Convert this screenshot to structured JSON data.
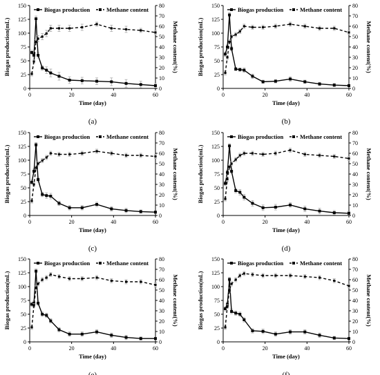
{
  "chart_data": [
    {
      "type": "line",
      "panel_label": "(a)",
      "xlabel": "Time (day)",
      "ylabel": "Biogas production(mL)",
      "y2label": "Methane content(%)",
      "xlim": [
        0,
        60
      ],
      "ylim": [
        0,
        150
      ],
      "y2lim": [
        0,
        80
      ],
      "xticks": [
        "0",
        "20",
        "40",
        "60"
      ],
      "yticks": [
        "0",
        "25",
        "50",
        "75",
        "100",
        "125",
        "150"
      ],
      "y2ticks": [
        "0",
        "10",
        "20",
        "30",
        "40",
        "50",
        "60",
        "70",
        "80"
      ],
      "legend_position": "top",
      "series": [
        {
          "name": "Biogas production",
          "axis": "left",
          "style": "solid",
          "x": [
            1,
            2,
            3,
            4,
            6,
            8,
            10,
            14,
            19,
            25,
            32,
            39,
            46,
            53,
            60
          ],
          "y": [
            65,
            60,
            126,
            60,
            37,
            33,
            28,
            22,
            15,
            14,
            13,
            12,
            9,
            7,
            5
          ],
          "error": [
            4,
            4,
            5,
            5,
            4,
            6,
            7,
            7,
            6,
            6,
            6,
            7,
            7,
            6,
            4
          ]
        },
        {
          "name": "Methane content",
          "axis": "right",
          "style": "dashed",
          "x": [
            1,
            2,
            3,
            4,
            6,
            8,
            10,
            14,
            19,
            25,
            32,
            39,
            46,
            53,
            60
          ],
          "y": [
            14,
            26,
            45,
            48,
            50,
            53,
            58,
            58,
            58,
            59,
            62,
            58,
            57,
            56,
            54
          ],
          "error": [
            2,
            2,
            2,
            3,
            3,
            3,
            3,
            3,
            3,
            3,
            2,
            3,
            3,
            2,
            2
          ]
        }
      ]
    },
    {
      "type": "line",
      "panel_label": "(b)",
      "xlabel": "Time (day)",
      "ylabel": "Biogas production(mL)",
      "y2label": "Methane content(%)",
      "xlim": [
        0,
        60
      ],
      "ylim": [
        0,
        150
      ],
      "y2lim": [
        0,
        80
      ],
      "xticks": [
        "0",
        "20",
        "40",
        "60"
      ],
      "yticks": [
        "0",
        "25",
        "50",
        "75",
        "100",
        "125",
        "150"
      ],
      "y2ticks": [
        "0",
        "10",
        "20",
        "30",
        "40",
        "50",
        "60",
        "70",
        "80"
      ],
      "legend_position": "top",
      "series": [
        {
          "name": "Biogas production",
          "axis": "left",
          "style": "solid",
          "x": [
            1,
            2,
            3,
            4,
            6,
            8,
            10,
            14,
            19,
            25,
            32,
            39,
            46,
            53,
            60
          ],
          "y": [
            62,
            75,
            133,
            72,
            35,
            34,
            33,
            22,
            12,
            13,
            17,
            12,
            8,
            6,
            5
          ],
          "error": [
            4,
            4,
            4,
            4,
            3,
            3,
            4,
            4,
            3,
            3,
            4,
            3,
            3,
            3,
            2
          ]
        },
        {
          "name": "Methane content",
          "axis": "right",
          "style": "dashed",
          "x": [
            1,
            2,
            3,
            4,
            6,
            8,
            10,
            14,
            19,
            25,
            32,
            39,
            46,
            53,
            60
          ],
          "y": [
            15,
            30,
            45,
            50,
            52,
            55,
            60,
            59,
            59,
            60,
            62,
            60,
            58,
            58,
            54
          ],
          "error": [
            2,
            2,
            2,
            2,
            2,
            2,
            2,
            2,
            2,
            2,
            2,
            2,
            2,
            2,
            2
          ]
        }
      ]
    },
    {
      "type": "line",
      "panel_label": "(c)",
      "xlabel": "Time (day)",
      "ylabel": "Biogas production(mL)",
      "y2label": "Methane content(%)",
      "xlim": [
        0,
        60
      ],
      "ylim": [
        0,
        150
      ],
      "y2lim": [
        0,
        80
      ],
      "xticks": [
        "0",
        "20",
        "40",
        "60"
      ],
      "yticks": [
        "0",
        "25",
        "50",
        "75",
        "100",
        "125",
        "150"
      ],
      "y2ticks": [
        "0",
        "10",
        "20",
        "30",
        "40",
        "50",
        "60",
        "70",
        "80"
      ],
      "legend_position": "top",
      "series": [
        {
          "name": "Biogas production",
          "axis": "left",
          "style": "solid",
          "x": [
            1,
            2,
            3,
            4,
            6,
            8,
            10,
            14,
            19,
            25,
            32,
            39,
            46,
            53,
            60
          ],
          "y": [
            60,
            80,
            128,
            65,
            38,
            36,
            35,
            22,
            14,
            14,
            20,
            12,
            9,
            7,
            6
          ],
          "error": [
            4,
            4,
            4,
            4,
            4,
            5,
            5,
            4,
            4,
            4,
            4,
            4,
            4,
            3,
            2
          ]
        },
        {
          "name": "Methane content",
          "axis": "right",
          "style": "dashed",
          "x": [
            1,
            2,
            3,
            4,
            6,
            8,
            10,
            14,
            19,
            25,
            32,
            39,
            46,
            53,
            60
          ],
          "y": [
            14,
            30,
            46,
            50,
            53,
            56,
            60,
            59,
            59,
            60,
            62,
            60,
            58,
            58,
            57
          ],
          "error": [
            2,
            2,
            2,
            2,
            2,
            2,
            2,
            2,
            2,
            2,
            2,
            2,
            2,
            2,
            2
          ]
        }
      ]
    },
    {
      "type": "line",
      "panel_label": "(d)",
      "xlabel": "Time (day)",
      "ylabel": "Biogas production(mL)",
      "y2label": "Methane content(%)",
      "xlim": [
        0,
        60
      ],
      "ylim": [
        0,
        150
      ],
      "y2lim": [
        0,
        80
      ],
      "xticks": [
        "0",
        "20",
        "40",
        "60"
      ],
      "yticks": [
        "0",
        "25",
        "50",
        "75",
        "100",
        "125",
        "150"
      ],
      "y2ticks": [
        "0",
        "10",
        "20",
        "30",
        "40",
        "50",
        "60",
        "70",
        "80"
      ],
      "legend_position": "top",
      "series": [
        {
          "name": "Biogas production",
          "axis": "left",
          "style": "solid",
          "x": [
            1,
            2,
            3,
            4,
            6,
            8,
            10,
            14,
            19,
            25,
            32,
            39,
            46,
            53,
            60
          ],
          "y": [
            58,
            78,
            126,
            80,
            45,
            42,
            33,
            22,
            14,
            15,
            19,
            12,
            8,
            5,
            4
          ],
          "error": [
            4,
            4,
            4,
            4,
            4,
            5,
            5,
            5,
            5,
            5,
            4,
            5,
            5,
            4,
            3
          ]
        },
        {
          "name": "Methane content",
          "axis": "right",
          "style": "dashed",
          "x": [
            1,
            2,
            3,
            4,
            6,
            8,
            10,
            14,
            19,
            25,
            32,
            39,
            46,
            53,
            60
          ],
          "y": [
            16,
            35,
            47,
            50,
            54,
            58,
            60,
            60,
            59,
            60,
            63,
            59,
            58,
            57,
            55
          ],
          "error": [
            2,
            2,
            2,
            2,
            2,
            2,
            2,
            2,
            2,
            2,
            2,
            2,
            2,
            2,
            2
          ]
        }
      ]
    },
    {
      "type": "line",
      "panel_label": "(e)",
      "xlabel": "Time (day)",
      "ylabel": "Biogas production(mL)",
      "y2label": "Methane content(%)",
      "xlim": [
        0,
        60
      ],
      "ylim": [
        0,
        150
      ],
      "y2lim": [
        0,
        80
      ],
      "xticks": [
        "0",
        "20",
        "40",
        "60"
      ],
      "yticks": [
        "0",
        "25",
        "50",
        "75",
        "100",
        "125",
        "150"
      ],
      "y2ticks": [
        "0",
        "10",
        "20",
        "30",
        "40",
        "50",
        "60",
        "70",
        "80"
      ],
      "legend_position": "top",
      "series": [
        {
          "name": "Biogas production",
          "axis": "left",
          "style": "solid",
          "x": [
            1,
            2,
            3,
            4,
            6,
            8,
            10,
            14,
            19,
            25,
            32,
            39,
            46,
            53,
            60
          ],
          "y": [
            68,
            70,
            128,
            70,
            50,
            48,
            38,
            22,
            14,
            14,
            18,
            12,
            8,
            6,
            6
          ],
          "error": [
            4,
            4,
            4,
            4,
            4,
            4,
            4,
            4,
            4,
            4,
            4,
            4,
            4,
            3,
            2
          ]
        },
        {
          "name": "Methane content",
          "axis": "right",
          "style": "dashed",
          "x": [
            1,
            2,
            3,
            4,
            6,
            8,
            10,
            14,
            19,
            25,
            32,
            39,
            46,
            53,
            60
          ],
          "y": [
            14,
            35,
            52,
            56,
            60,
            62,
            65,
            63,
            61,
            61,
            62,
            59,
            58,
            58,
            55
          ],
          "error": [
            2,
            2,
            2,
            2,
            2,
            2,
            2,
            2,
            2,
            2,
            2,
            2,
            2,
            2,
            2
          ]
        }
      ]
    },
    {
      "type": "line",
      "panel_label": "(f)",
      "xlabel": "Time (day)",
      "ylabel": "Biogas production(mL)",
      "y2label": "Methane content(%)",
      "xlim": [
        0,
        60
      ],
      "ylim": [
        0,
        150
      ],
      "y2lim": [
        0,
        80
      ],
      "xticks": [
        "0",
        "20",
        "40",
        "60"
      ],
      "yticks": [
        "0",
        "25",
        "50",
        "75",
        "100",
        "125",
        "150"
      ],
      "y2ticks": [
        "0",
        "10",
        "20",
        "30",
        "40",
        "50",
        "60",
        "70",
        "80"
      ],
      "legend_position": "top",
      "series": [
        {
          "name": "Biogas production",
          "axis": "left",
          "style": "solid",
          "x": [
            1,
            2,
            3,
            4,
            6,
            8,
            10,
            14,
            19,
            25,
            32,
            39,
            46,
            53,
            60
          ],
          "y": [
            60,
            68,
            113,
            55,
            52,
            50,
            40,
            20,
            19,
            14,
            18,
            18,
            12,
            7,
            6
          ],
          "error": [
            4,
            4,
            4,
            4,
            4,
            4,
            4,
            4,
            4,
            4,
            4,
            4,
            4,
            3,
            2
          ]
        },
        {
          "name": "Methane content",
          "axis": "right",
          "style": "dashed",
          "x": [
            1,
            2,
            3,
            4,
            6,
            8,
            10,
            14,
            19,
            25,
            32,
            39,
            46,
            53,
            60
          ],
          "y": [
            14,
            34,
            50,
            56,
            60,
            64,
            66,
            65,
            64,
            64,
            64,
            63,
            62,
            59,
            54
          ],
          "error": [
            2,
            2,
            2,
            2,
            2,
            2,
            2,
            2,
            2,
            2,
            2,
            2,
            2,
            2,
            2
          ]
        }
      ]
    }
  ]
}
